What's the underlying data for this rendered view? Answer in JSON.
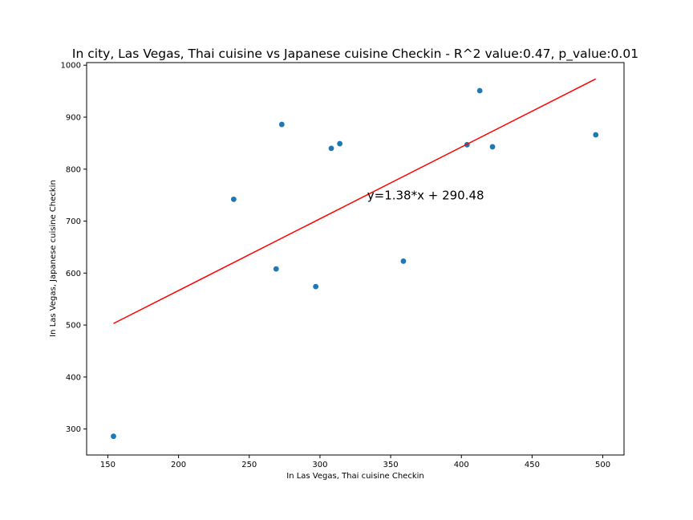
{
  "chart_data": {
    "type": "scatter",
    "title": "In city, Las Vegas, Thai cuisine vs Japanese cuisine Checkin - R^2 value:0.47, p_value:0.01",
    "xlabel": "In Las Vegas, Thai cuisine Checkin",
    "ylabel": "In Las Vegas, Japanese cuisine Checkin",
    "xlim": [
      135,
      515
    ],
    "ylim": [
      250,
      1005
    ],
    "xticks": [
      150,
      200,
      250,
      300,
      350,
      400,
      450,
      500
    ],
    "yticks": [
      300,
      400,
      500,
      600,
      700,
      800,
      900,
      1000
    ],
    "grid": false,
    "points": {
      "x": [
        154,
        239,
        269,
        273,
        297,
        308,
        314,
        359,
        404,
        413,
        422,
        495
      ],
      "y": [
        286,
        742,
        608,
        886,
        574,
        840,
        849,
        623,
        847,
        951,
        843,
        866
      ]
    },
    "regression_line": {
      "slope": 1.38,
      "intercept": 290.48,
      "x_start": 154,
      "x_end": 495,
      "label": "y=1.38*x + 290.48"
    },
    "colors": {
      "points": "#1f77b4",
      "regression_line": "#ff0000"
    }
  }
}
